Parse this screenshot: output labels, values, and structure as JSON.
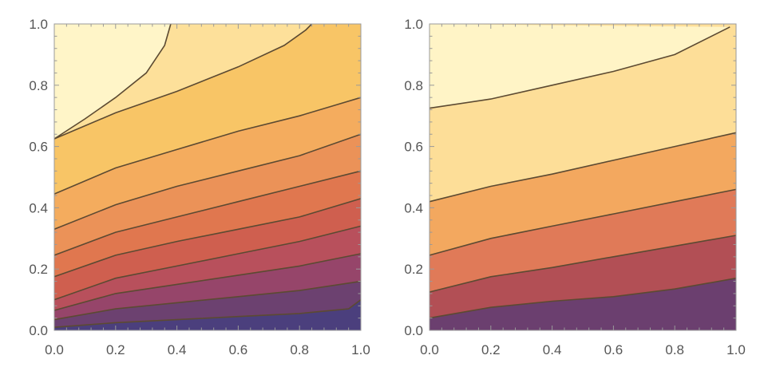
{
  "chart_data": [
    {
      "type": "contour",
      "panel": "left",
      "xlim": [
        0,
        1
      ],
      "ylim": [
        0,
        1
      ],
      "x_ticks": [
        "0.0",
        "0.2",
        "0.4",
        "0.6",
        "0.8",
        "1.0"
      ],
      "y_ticks": [
        "0.0",
        "0.2",
        "0.4",
        "0.6",
        "0.8",
        "1.0"
      ],
      "palette": [
        "#4b3f7d",
        "#6c4170",
        "#96456a",
        "#b8505c",
        "#cf5f4f",
        "#e0774f",
        "#eb9258",
        "#f4ac5e",
        "#f8c566",
        "#fde09a",
        "#fff5c8"
      ],
      "contour_lines": [
        {
          "x": [
            0.0,
            0.2,
            0.4,
            0.6,
            0.8,
            0.96,
            1.0
          ],
          "y": [
            0.01,
            0.025,
            0.035,
            0.045,
            0.055,
            0.07,
            0.1
          ]
        },
        {
          "x": [
            0.0,
            0.2,
            0.4,
            0.6,
            0.8,
            1.0
          ],
          "y": [
            0.035,
            0.07,
            0.09,
            0.11,
            0.13,
            0.16
          ]
        },
        {
          "x": [
            0.0,
            0.2,
            0.4,
            0.6,
            0.8,
            1.0
          ],
          "y": [
            0.065,
            0.12,
            0.15,
            0.18,
            0.21,
            0.25
          ]
        },
        {
          "x": [
            0.0,
            0.2,
            0.4,
            0.6,
            0.8,
            1.0
          ],
          "y": [
            0.1,
            0.17,
            0.21,
            0.25,
            0.29,
            0.34
          ]
        },
        {
          "x": [
            0.0,
            0.2,
            0.4,
            0.6,
            0.8,
            1.0
          ],
          "y": [
            0.175,
            0.245,
            0.29,
            0.33,
            0.37,
            0.43
          ]
        },
        {
          "x": [
            0.0,
            0.2,
            0.4,
            0.6,
            0.8,
            1.0
          ],
          "y": [
            0.245,
            0.32,
            0.37,
            0.42,
            0.47,
            0.52
          ]
        },
        {
          "x": [
            0.0,
            0.2,
            0.4,
            0.6,
            0.8,
            1.0
          ],
          "y": [
            0.33,
            0.41,
            0.47,
            0.52,
            0.57,
            0.64
          ]
        },
        {
          "x": [
            0.0,
            0.2,
            0.4,
            0.6,
            0.8,
            1.0
          ],
          "y": [
            0.445,
            0.53,
            0.59,
            0.65,
            0.7,
            0.76
          ]
        },
        {
          "x": [
            0.0,
            0.2,
            0.4,
            0.6,
            0.75,
            0.82,
            0.84
          ],
          "y": [
            0.625,
            0.71,
            0.78,
            0.86,
            0.93,
            0.98,
            1.0
          ]
        },
        {
          "x": [
            0.0,
            0.1,
            0.2,
            0.3,
            0.36,
            0.38
          ],
          "y": [
            0.625,
            0.69,
            0.76,
            0.84,
            0.93,
            1.0
          ]
        }
      ]
    },
    {
      "type": "contour",
      "panel": "right",
      "xlim": [
        0,
        1
      ],
      "ylim": [
        0,
        1
      ],
      "x_ticks": [
        "0.0",
        "0.2",
        "0.4",
        "0.6",
        "0.8",
        "1.0"
      ],
      "y_ticks": [
        "0.0",
        "0.2",
        "0.4",
        "0.6",
        "0.8",
        "1.0"
      ],
      "palette": [
        "#6b3f6f",
        "#b24f55",
        "#e07a58",
        "#f3a85f",
        "#fdde98",
        "#fff4c6"
      ],
      "contour_lines": [
        {
          "x": [
            0.0,
            0.2,
            0.4,
            0.6,
            0.8,
            1.0
          ],
          "y": [
            0.04,
            0.075,
            0.095,
            0.11,
            0.135,
            0.17
          ]
        },
        {
          "x": [
            0.0,
            0.2,
            0.4,
            0.6,
            0.8,
            1.0
          ],
          "y": [
            0.125,
            0.175,
            0.205,
            0.24,
            0.275,
            0.31
          ]
        },
        {
          "x": [
            0.0,
            0.2,
            0.4,
            0.6,
            0.8,
            1.0
          ],
          "y": [
            0.245,
            0.3,
            0.34,
            0.38,
            0.42,
            0.46
          ]
        },
        {
          "x": [
            0.0,
            0.2,
            0.4,
            0.6,
            0.8,
            1.0
          ],
          "y": [
            0.42,
            0.47,
            0.51,
            0.555,
            0.6,
            0.645
          ]
        },
        {
          "x": [
            0.0,
            0.2,
            0.4,
            0.6,
            0.8,
            0.98
          ],
          "y": [
            0.725,
            0.755,
            0.8,
            0.845,
            0.9,
            0.99
          ]
        }
      ]
    }
  ]
}
